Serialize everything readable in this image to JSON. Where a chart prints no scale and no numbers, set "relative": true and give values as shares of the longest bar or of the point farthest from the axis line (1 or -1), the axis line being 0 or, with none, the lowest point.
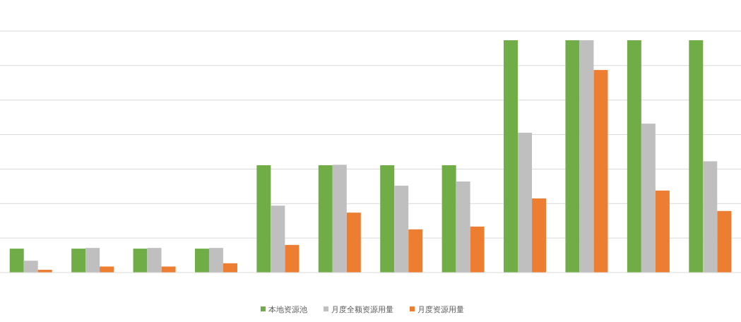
{
  "chart_data": {
    "type": "bar",
    "relative": true,
    "grid": "y",
    "legend": "bottom",
    "categories": [
      null,
      null,
      null,
      null,
      null,
      null,
      null,
      null,
      null,
      null,
      null,
      null
    ],
    "series": [
      {
        "name": "本地资源池",
        "color": "#70ad47",
        "values": [
          0.103,
          0.103,
          0.103,
          0.103,
          0.462,
          0.462,
          0.462,
          0.462,
          1,
          1,
          1,
          1
        ]
      },
      {
        "name": "月度全额资源用量",
        "color": "#bfbfbf",
        "values": [
          0.051,
          0.106,
          0.106,
          0.106,
          0.288,
          0.464,
          0.374,
          0.392,
          0.602,
          1,
          0.641,
          0.479
        ]
      },
      {
        "name": "月度资源用量",
        "color": "#ed7d31",
        "values": [
          0.012,
          0.026,
          0.026,
          0.04,
          0.119,
          0.258,
          0.186,
          0.198,
          0.319,
          0.872,
          0.353,
          0.265
        ]
      }
    ]
  }
}
